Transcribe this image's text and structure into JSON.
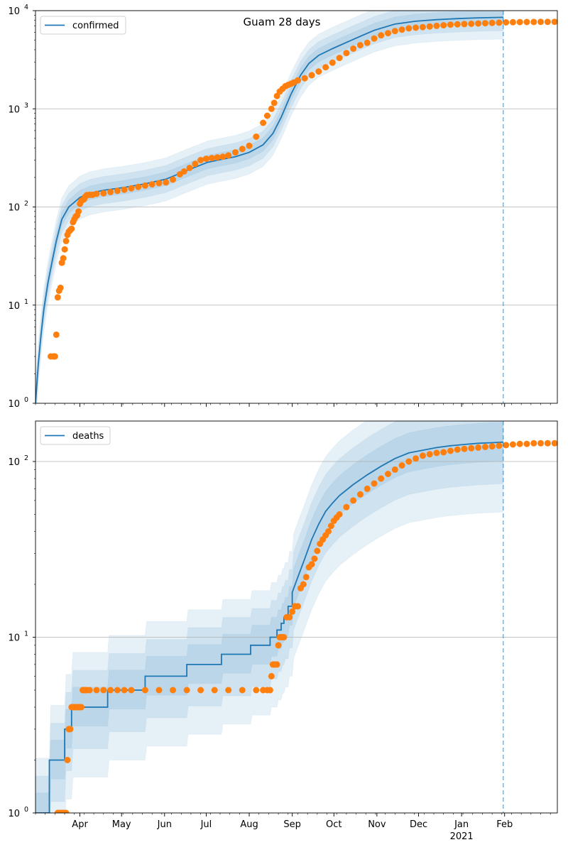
{
  "title": "Guam 28 days",
  "colors": {
    "model": "#1f77b4",
    "observed": "#ff7f0e",
    "band": "#1f77b4",
    "grid": "#b0b0b0",
    "forecast_line": "#1f77b4"
  },
  "x_axis": {
    "month_labels": [
      "Apr",
      "May",
      "Jun",
      "Jul",
      "Aug",
      "Sep",
      "Oct",
      "Nov",
      "Dec",
      "Jan",
      "Feb"
    ],
    "month_days": [
      13,
      43,
      74,
      104,
      135,
      166,
      196,
      227,
      257,
      288,
      319
    ],
    "year_label": "2021",
    "range_days": [
      -19,
      357
    ],
    "forecast_day": 318
  },
  "chart_data": [
    {
      "type": "line",
      "name": "confirmed",
      "legend": "confirmed",
      "yscale": "log",
      "ylim": [
        1,
        10000
      ],
      "ytick_labels": [
        {
          "base": "10",
          "exp": "0"
        },
        {
          "base": "10",
          "exp": "1"
        },
        {
          "base": "10",
          "exp": "2"
        },
        {
          "base": "10",
          "exp": "3"
        },
        {
          "base": "10",
          "exp": "4"
        }
      ],
      "ytick_values": [
        1,
        10,
        100,
        1000,
        10000
      ],
      "model": {
        "x": [
          -19,
          -17,
          -15,
          -13,
          -10,
          -7,
          -4,
          0,
          5,
          13,
          20,
          30,
          45,
          60,
          75,
          90,
          105,
          115,
          125,
          135,
          145,
          152,
          158,
          165,
          172,
          178,
          185,
          195,
          210,
          225,
          240,
          255,
          270,
          285,
          300,
          318
        ],
        "y": [
          1,
          2.5,
          5,
          9,
          17,
          28,
          45,
          75,
          100,
          125,
          138,
          148,
          158,
          172,
          192,
          235,
          285,
          305,
          325,
          360,
          430,
          560,
          820,
          1400,
          2200,
          2900,
          3500,
          4100,
          5100,
          6300,
          7300,
          7800,
          8100,
          8300,
          8450,
          8550
        ]
      },
      "band_scales": [
        [
          1.18,
          0.86
        ],
        [
          1.38,
          0.73
        ],
        [
          1.65,
          0.6
        ]
      ],
      "observed": {
        "x": [
          -8,
          -6,
          -5,
          -4,
          -3,
          -2,
          -1,
          0,
          1,
          2,
          3,
          4,
          5,
          6,
          7,
          8,
          9,
          10,
          11,
          12,
          13,
          14,
          15,
          16,
          17,
          18,
          20,
          22,
          25,
          30,
          35,
          40,
          45,
          50,
          55,
          60,
          65,
          70,
          75,
          80,
          85,
          88,
          92,
          96,
          100,
          104,
          108,
          112,
          116,
          120,
          125,
          130,
          135,
          140,
          145,
          148,
          151,
          153,
          155,
          157,
          159,
          161,
          163,
          165,
          167,
          170,
          175,
          180,
          185,
          190,
          195,
          200,
          205,
          210,
          215,
          220,
          225,
          230,
          235,
          240,
          245,
          250,
          255,
          260,
          265,
          270,
          275,
          280,
          285,
          290,
          295,
          300,
          305,
          310,
          315,
          320,
          325,
          330,
          335,
          340,
          345,
          350,
          355
        ],
        "y": [
          3,
          3,
          3,
          5,
          12,
          14,
          15,
          27,
          30,
          37,
          45,
          52,
          56,
          58,
          60,
          70,
          75,
          80,
          82,
          90,
          108,
          115,
          118,
          120,
          128,
          132,
          133,
          133,
          136,
          138,
          142,
          146,
          150,
          155,
          160,
          165,
          170,
          175,
          178,
          190,
          215,
          230,
          250,
          275,
          300,
          310,
          315,
          320,
          325,
          335,
          360,
          390,
          420,
          520,
          720,
          850,
          1000,
          1150,
          1350,
          1500,
          1600,
          1700,
          1750,
          1800,
          1850,
          1950,
          2050,
          2200,
          2400,
          2650,
          2950,
          3300,
          3700,
          4100,
          4450,
          4700,
          5200,
          5600,
          5900,
          6200,
          6400,
          6600,
          6700,
          6800,
          6900,
          7000,
          7100,
          7200,
          7250,
          7300,
          7350,
          7400,
          7450,
          7500,
          7550,
          7600,
          7620,
          7650,
          7660,
          7670,
          7680,
          7690,
          7700
        ]
      }
    },
    {
      "type": "line",
      "name": "deaths",
      "legend": "deaths",
      "yscale": "log",
      "ylim": [
        1,
        170
      ],
      "ytick_labels": [
        {
          "base": "10",
          "exp": "0"
        },
        {
          "base": "10",
          "exp": "1"
        },
        {
          "base": "10",
          "exp": "2"
        }
      ],
      "ytick_values": [
        1,
        10,
        100
      ],
      "model": {
        "x": [
          -19,
          -9,
          -9,
          2,
          2,
          7,
          7,
          19,
          19,
          33,
          33,
          60,
          60,
          90,
          90,
          115,
          115,
          136,
          136,
          150,
          150,
          155,
          155,
          158,
          158,
          160,
          160,
          163,
          163,
          166,
          166,
          170,
          175,
          180,
          185,
          190,
          195,
          200,
          210,
          220,
          230,
          240,
          250,
          260,
          270,
          280,
          290,
          300,
          310,
          318
        ],
        "y": [
          1,
          1,
          2,
          2,
          3,
          3,
          4,
          4,
          4,
          4,
          5,
          5,
          6,
          6,
          7,
          7,
          8,
          8,
          9,
          9,
          10,
          10,
          11,
          11,
          12,
          12,
          13,
          13,
          15,
          15,
          18,
          22,
          28,
          36,
          44,
          52,
          58,
          64,
          74,
          84,
          94,
          104,
          112,
          116,
          120,
          123,
          125,
          127,
          128,
          129
        ]
      },
      "band_scales": [
        [
          1.3,
          0.78
        ],
        [
          1.62,
          0.58
        ],
        [
          2.05,
          0.4
        ]
      ],
      "observed": {
        "x": [
          -3,
          -2,
          -1,
          0,
          1,
          2,
          3,
          4,
          5,
          6,
          7,
          8,
          9,
          10,
          11,
          12,
          13,
          14,
          15,
          16,
          17,
          18,
          20,
          25,
          30,
          35,
          40,
          45,
          50,
          60,
          70,
          80,
          90,
          100,
          110,
          120,
          130,
          140,
          145,
          148,
          150,
          151,
          152,
          153,
          154,
          155,
          156,
          157,
          158,
          159,
          160,
          162,
          164,
          166,
          168,
          170,
          172,
          174,
          176,
          178,
          180,
          182,
          184,
          186,
          188,
          190,
          192,
          194,
          196,
          198,
          200,
          205,
          210,
          215,
          220,
          225,
          230,
          235,
          240,
          245,
          250,
          255,
          260,
          265,
          270,
          275,
          280,
          285,
          290,
          295,
          300,
          305,
          310,
          315,
          320,
          325,
          330,
          335,
          340,
          345,
          350,
          355
        ],
        "y": [
          1,
          1,
          1,
          1,
          1,
          1,
          1,
          2,
          3,
          3,
          4,
          4,
          4,
          4,
          4,
          4,
          4,
          4,
          5,
          5,
          5,
          5,
          5,
          5,
          5,
          5,
          5,
          5,
          5,
          5,
          5,
          5,
          5,
          5,
          5,
          5,
          5,
          5,
          5,
          5,
          5,
          6,
          7,
          7,
          7,
          7,
          9,
          10,
          10,
          10,
          10,
          13,
          13,
          14,
          15,
          15,
          19,
          20,
          22,
          25,
          26,
          28,
          31,
          34,
          36,
          38,
          40,
          43,
          46,
          48,
          50,
          55,
          60,
          65,
          70,
          75,
          80,
          85,
          90,
          95,
          100,
          104,
          108,
          110,
          112,
          113,
          115,
          117,
          118,
          119,
          120,
          121,
          122,
          123,
          124,
          125,
          126,
          126,
          127,
          127,
          127,
          127
        ]
      }
    }
  ]
}
